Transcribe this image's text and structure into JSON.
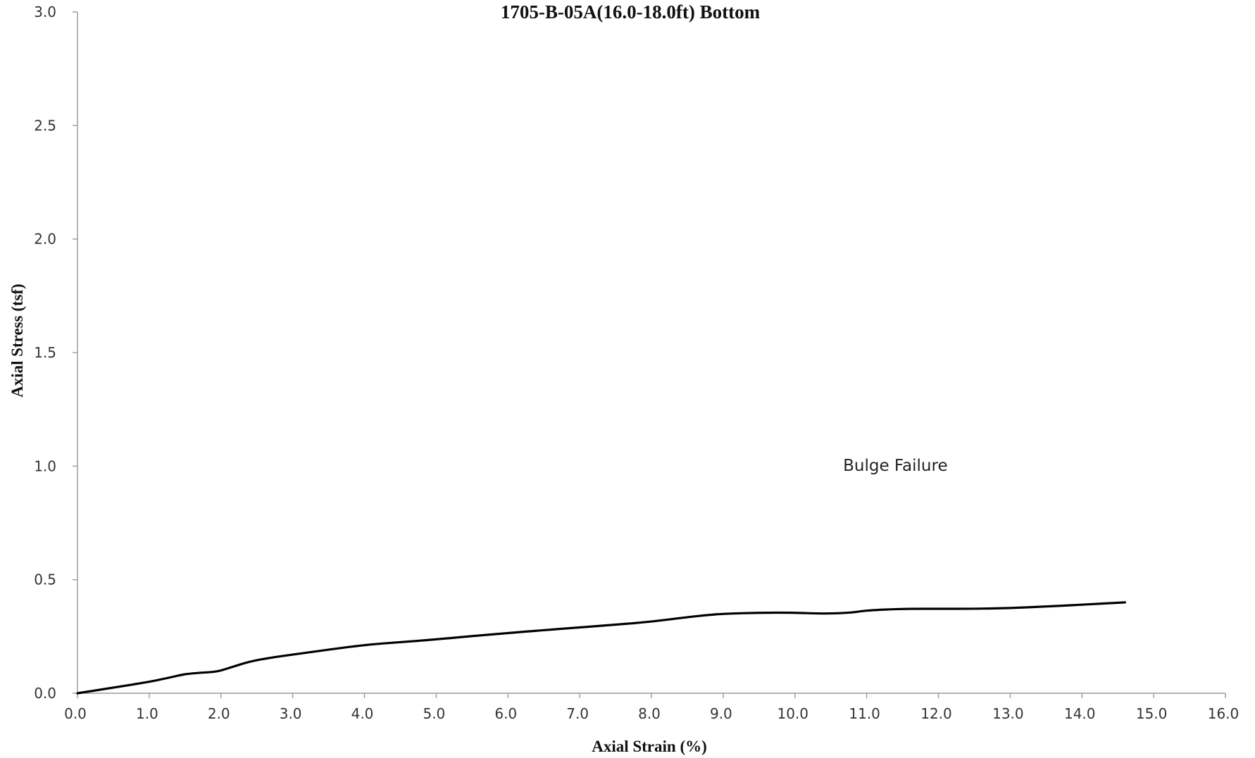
{
  "chart_data": {
    "type": "line",
    "title": "1705-B-05A(16.0-18.0ft) Bottom",
    "xlabel": "Axial Strain (%)",
    "ylabel": "Axial Stress (tsf)",
    "xlim": [
      0,
      16
    ],
    "ylim": [
      0,
      3
    ],
    "x_ticks": [
      "0.0",
      "1.0",
      "2.0",
      "3.0",
      "4.0",
      "5.0",
      "6.0",
      "7.0",
      "8.0",
      "9.0",
      "10.0",
      "11.0",
      "12.0",
      "13.0",
      "14.0",
      "15.0",
      "16.0"
    ],
    "y_ticks": [
      "0.0",
      "0.5",
      "1.0",
      "1.5",
      "2.0",
      "2.5",
      "3.0"
    ],
    "grid": false,
    "legend": "none",
    "annotations": [
      {
        "text": "Bulge Failure",
        "x": 11.4,
        "y": 0.98
      }
    ],
    "series": [
      {
        "color": "#000000",
        "x": [
          0.0,
          0.5,
          1.0,
          1.3,
          1.5,
          1.7,
          1.95,
          2.1,
          2.4,
          2.7,
          3.0,
          3.5,
          4.0,
          4.5,
          5.0,
          5.5,
          6.0,
          6.5,
          7.0,
          7.5,
          8.0,
          8.5,
          8.8,
          9.0,
          9.5,
          10.0,
          10.4,
          10.8,
          11.0,
          11.5,
          12.0,
          12.5,
          13.0,
          13.5,
          14.0,
          14.6
        ],
        "y": [
          0.0,
          0.025,
          0.05,
          0.07,
          0.085,
          0.09,
          0.095,
          0.11,
          0.14,
          0.157,
          0.17,
          0.192,
          0.213,
          0.225,
          0.237,
          0.252,
          0.265,
          0.278,
          0.29,
          0.302,
          0.315,
          0.335,
          0.345,
          0.35,
          0.355,
          0.355,
          0.35,
          0.355,
          0.365,
          0.372,
          0.372,
          0.372,
          0.375,
          0.382,
          0.39,
          0.4
        ]
      }
    ]
  }
}
